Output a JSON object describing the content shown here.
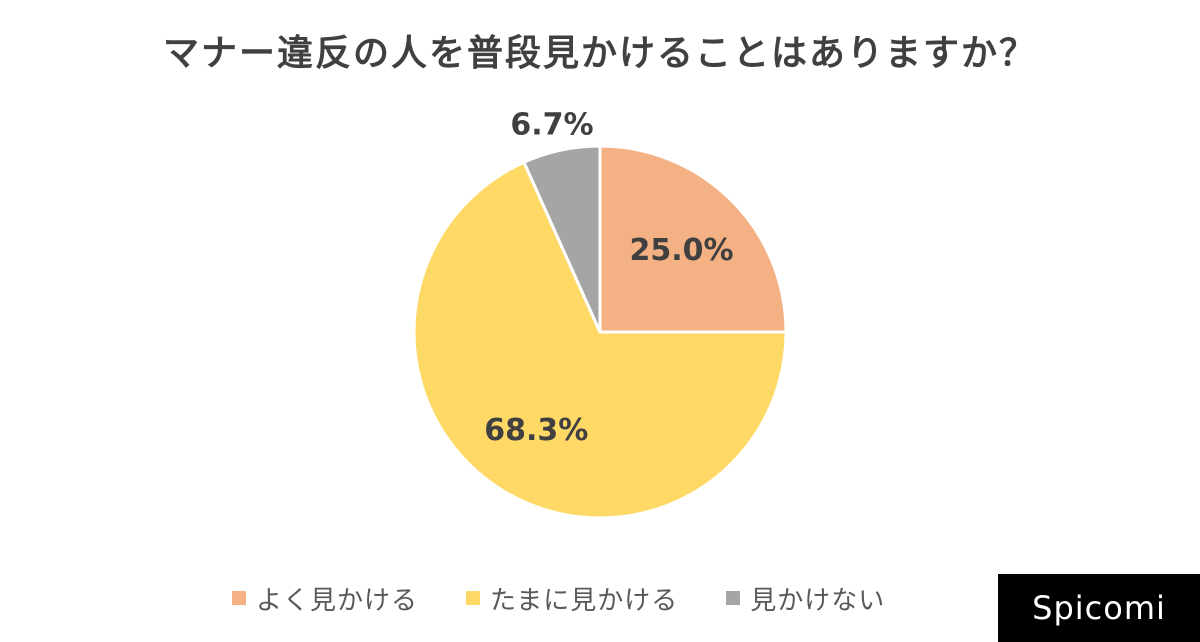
{
  "chart_data": {
    "type": "pie",
    "title": "マナー違反の人を普段見かけることはありますか？",
    "slices": [
      {
        "label": "よく見かける",
        "value": 25.0,
        "value_label": "25.0%",
        "color": "#F4B183"
      },
      {
        "label": "たまに見かける",
        "value": 68.3,
        "value_label": "68.3%",
        "color": "#FFD966"
      },
      {
        "label": "見かけない",
        "value": 6.7,
        "value_label": "6.7%",
        "color": "#A5A5A5"
      }
    ],
    "start_angle": "12 o'clock",
    "direction": "clockwise",
    "legend_position": "bottom",
    "data_label_color": "#404040"
  },
  "brand": {
    "text": "Spicomi"
  }
}
